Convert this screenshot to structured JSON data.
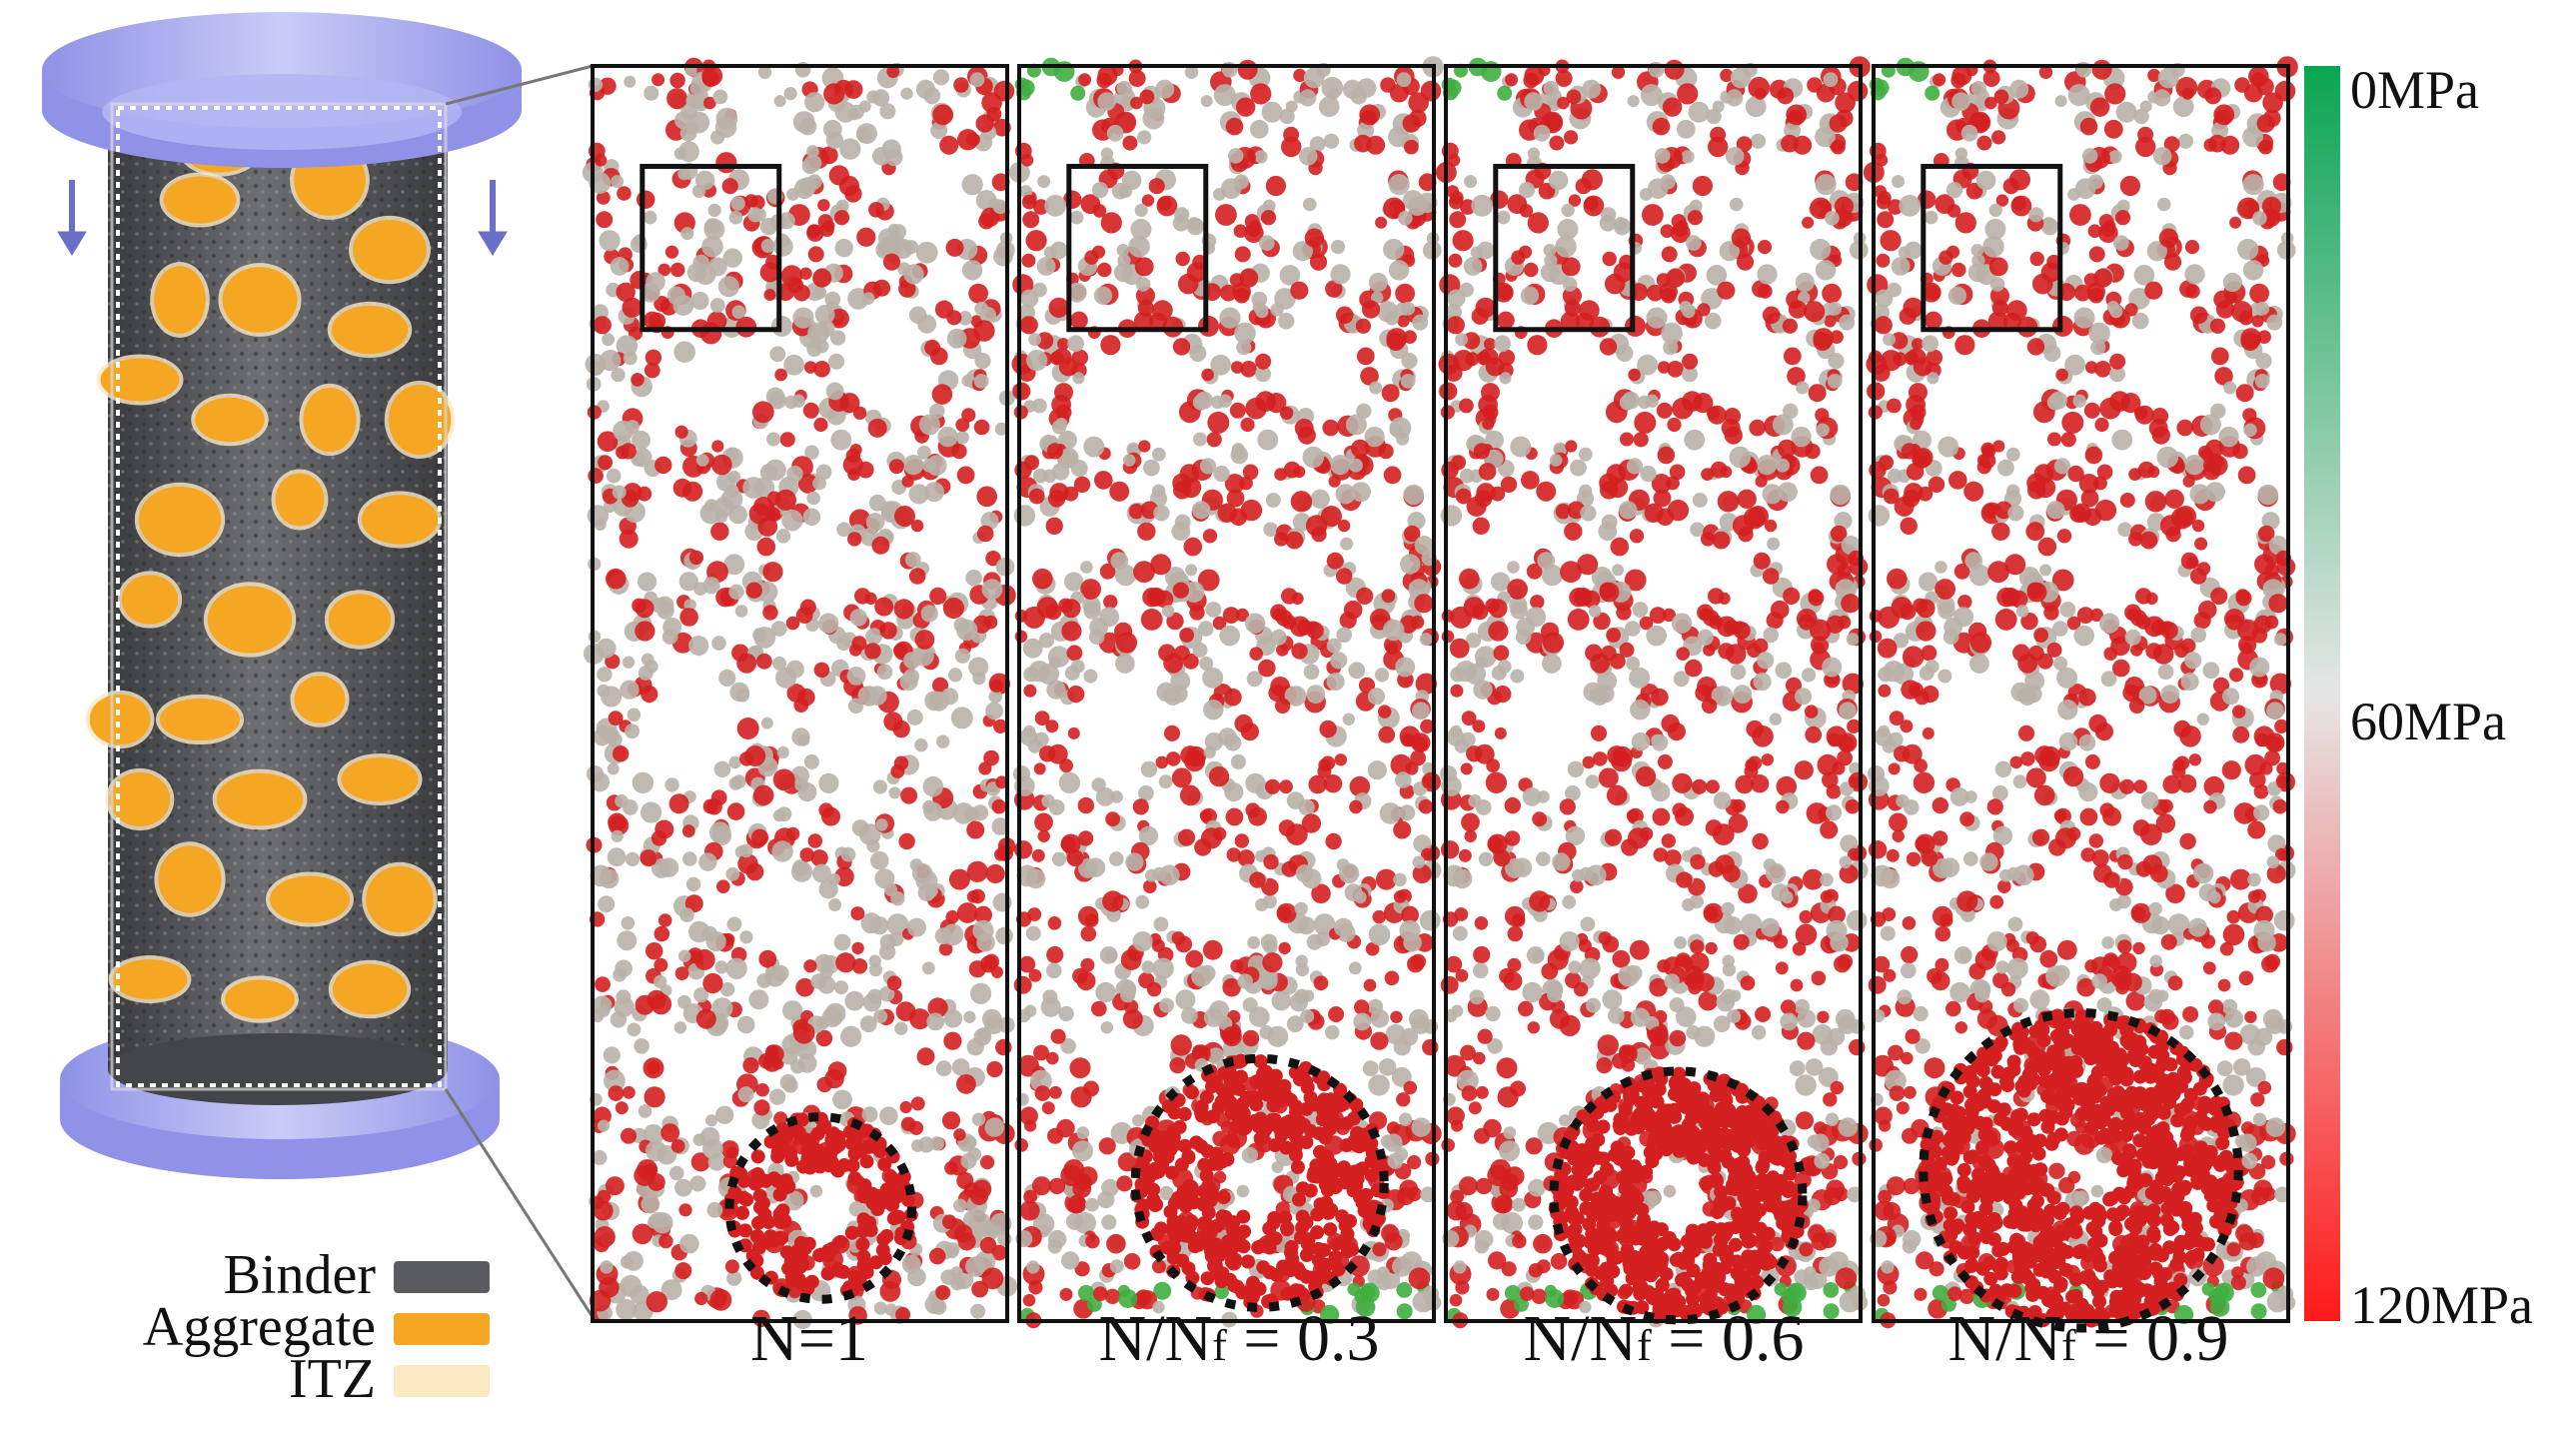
{
  "legend": {
    "items": [
      {
        "label": "Binder",
        "color": "#5a5c60"
      },
      {
        "label": "Aggregate",
        "color": "#f5a623"
      },
      {
        "label": "ITZ",
        "color": "#fbe9c4"
      }
    ]
  },
  "panels": [
    {
      "caption_main": "N=1",
      "caption_sub": "",
      "caption_tail": ""
    },
    {
      "caption_main": "N/N",
      "caption_sub": "f",
      "caption_tail": " = 0.3"
    },
    {
      "caption_main": "N/N",
      "caption_sub": "f",
      "caption_tail": " = 0.6"
    },
    {
      "caption_main": "N/N",
      "caption_sub": "f",
      "caption_tail": " = 0.9"
    }
  ],
  "colorbar": {
    "top_label": "0MPa",
    "mid_label": "60MPa",
    "bottom_label": "120MPa",
    "colors": [
      "#0aa552",
      "#dcdcdc",
      "#ff1a1a"
    ]
  },
  "colors": {
    "platen": "#a7a9ef",
    "arrow": "#6a6fc8",
    "high_stress": "#d42020",
    "mid_stress": "#b9b1a8",
    "low_stress": "#3fae3f"
  },
  "icons": [
    "down-arrow-icon"
  ]
}
